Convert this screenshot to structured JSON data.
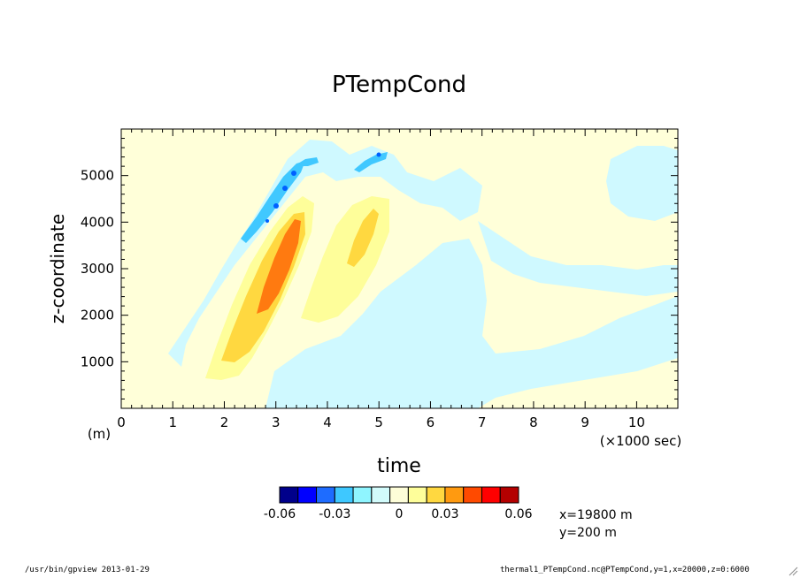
{
  "chart_data": {
    "type": "heatmap",
    "title": "PTempCond",
    "xlabel": "time",
    "x_unit": "(×1000 sec)",
    "ylabel": "z-coordinate",
    "y_unit": "(m)",
    "xlim": [
      0,
      10.8
    ],
    "ylim": [
      0,
      6000
    ],
    "x_ticks": [
      0,
      1,
      2,
      3,
      4,
      5,
      6,
      7,
      8,
      9,
      10
    ],
    "y_ticks": [
      1000,
      2000,
      3000,
      4000,
      5000
    ],
    "color_levels": [
      -0.06,
      -0.03,
      0,
      0.03,
      0.06
    ],
    "level_labels": [
      "-0.06",
      "-0.03",
      "0",
      "0.03",
      "0.06"
    ],
    "colorbar_colors": [
      "#00008b",
      "#0000ff",
      "#1e6cff",
      "#3ec8ff",
      "#8ff5ff",
      "#d2fbfb",
      "#fdfdd8",
      "#fefe9a",
      "#ffd840",
      "#ff9a10",
      "#ff4a00",
      "#ff0000",
      "#b40000"
    ],
    "colors": {
      "background_field": "#ffffd9",
      "light_negative": "#cff9ff",
      "mid_negative": "#8ef3ff",
      "strong_negative": "#40c8ff",
      "peak_negative": "#0060ff",
      "light_positive": "#fefe9a",
      "mid_positive": "#ffd840",
      "strong_positive": "#ff7a10"
    },
    "features": [
      {
        "name": "positive plume 1",
        "x_center": 3.0,
        "z_center": 2800,
        "peak": 0.045
      },
      {
        "name": "positive plume 2",
        "x_center": 4.5,
        "z_center": 3200,
        "peak": 0.025
      },
      {
        "name": "negative band near top",
        "x_center": 4.0,
        "z_center": 5000,
        "peak": -0.05
      }
    ],
    "annotations": [
      "x=19800  m",
      "y=200  m"
    ]
  },
  "footer": {
    "left": "/usr/bin/gpview  2013-01-29",
    "right": "thermal1_PTempCond.nc@PTempCond,y=1,x=20000,z=0:6000"
  }
}
